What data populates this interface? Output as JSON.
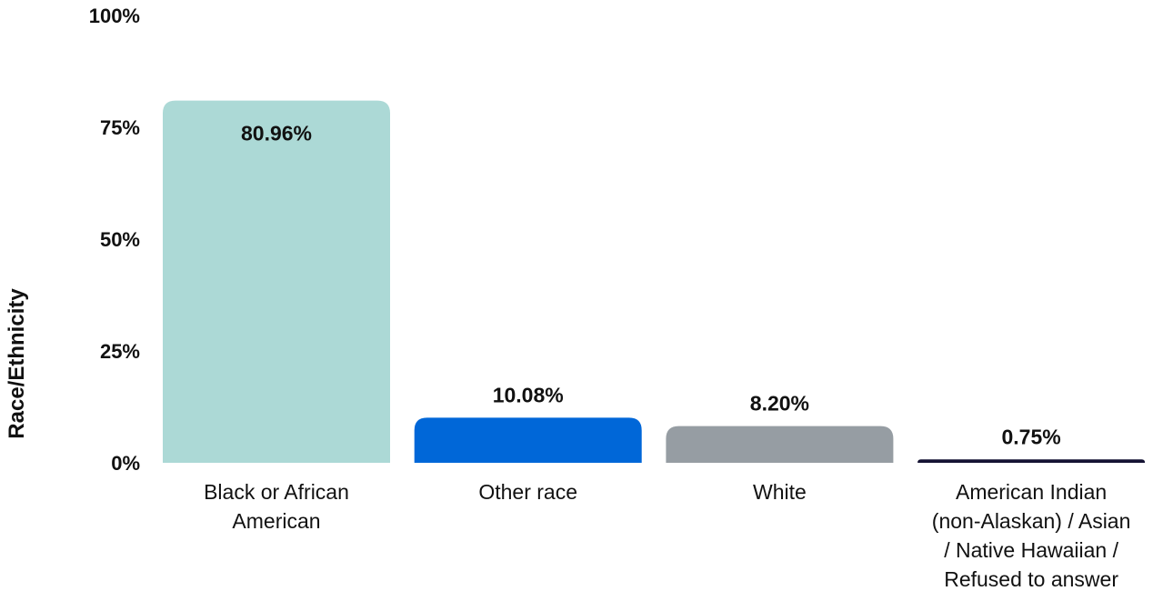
{
  "chart_data": {
    "type": "bar",
    "title": "",
    "xlabel": "",
    "ylabel": "Race/Ethnicity",
    "ylim": [
      0,
      100
    ],
    "yticks": [
      0,
      25,
      50,
      75,
      100
    ],
    "ytick_labels": [
      "0%",
      "25%",
      "50%",
      "75%",
      "100%"
    ],
    "categories": [
      [
        "Black or African",
        "American"
      ],
      [
        "Other race"
      ],
      [
        "White"
      ],
      [
        "American Indian",
        "(non-Alaskan) / Asian",
        "/ Native Hawaiian /",
        "Refused to answer"
      ]
    ],
    "values": [
      80.96,
      10.08,
      8.2,
      0.75
    ],
    "value_labels": [
      "80.96%",
      "10.08%",
      "8.20%",
      "0.75%"
    ],
    "colors": [
      "#acd9d6",
      "#0067d8",
      "#969da3",
      "#141233"
    ],
    "grid": false,
    "legend": "none"
  }
}
